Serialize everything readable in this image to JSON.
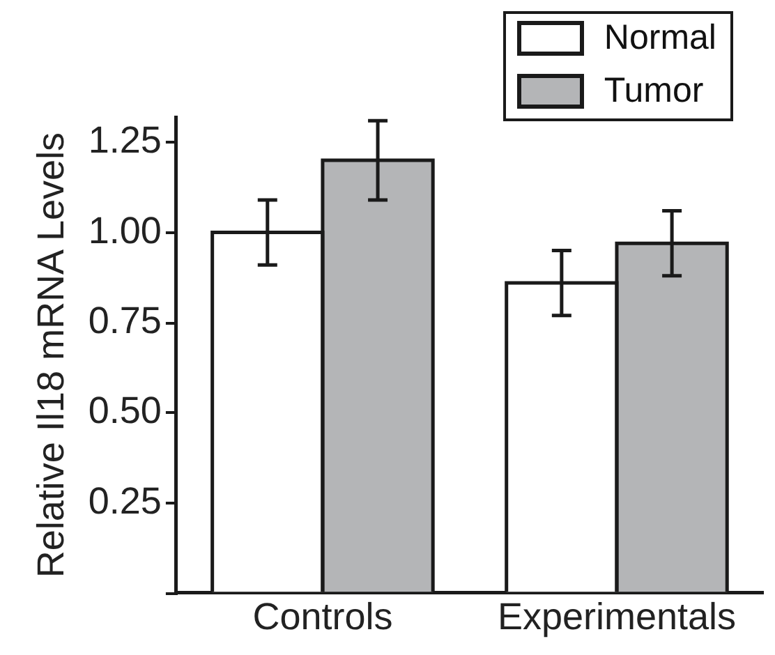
{
  "chart_data": {
    "type": "bar",
    "ylabel": "Relative Il18 mRNA Levels",
    "categories": [
      "Controls",
      "Experimentals"
    ],
    "series": [
      {
        "name": "Normal",
        "color": "#ffffff",
        "values": [
          1.0,
          0.86
        ],
        "errors": [
          0.09,
          0.09
        ]
      },
      {
        "name": "Tumor",
        "color": "#b4b5b7",
        "values": [
          1.2,
          0.97
        ],
        "errors": [
          0.11,
          0.09
        ]
      }
    ],
    "ylim": [
      0,
      1.32
    ],
    "yticks": [
      {
        "value": 0,
        "label": null
      },
      0.25,
      {
        "value": 0.5,
        "label": "0.50"
      },
      0.75,
      {
        "value": 1,
        "label": "1.00"
      },
      1.25
    ],
    "legend": "top right"
  }
}
